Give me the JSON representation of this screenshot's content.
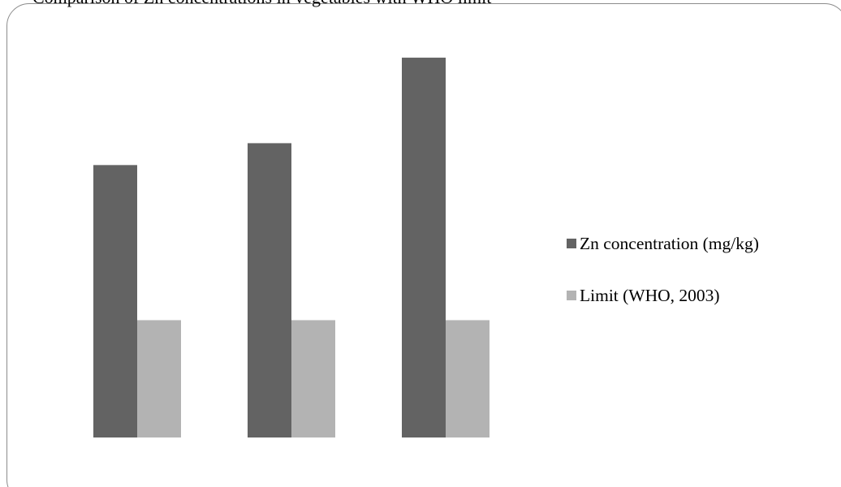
{
  "page": {
    "top_text": "Comparison of Zn concentrations in vegetables with WHO limit"
  },
  "chart_data": {
    "type": "bar",
    "categories": [
      "",
      "",
      ""
    ],
    "series": [
      {
        "name": "Zn concentration (mg/kg)",
        "color": "#636363",
        "values": [
          68.5,
          74.0,
          95.5
        ]
      },
      {
        "name": "Limit (WHO, 2003)",
        "color": "#b3b3b3",
        "values": [
          29.5,
          29.5,
          29.5
        ]
      }
    ],
    "title": "",
    "xlabel": "",
    "ylabel": "",
    "ylim": [
      0,
      100
    ],
    "grid": false,
    "axes_visible": false,
    "legend_position": "right"
  }
}
